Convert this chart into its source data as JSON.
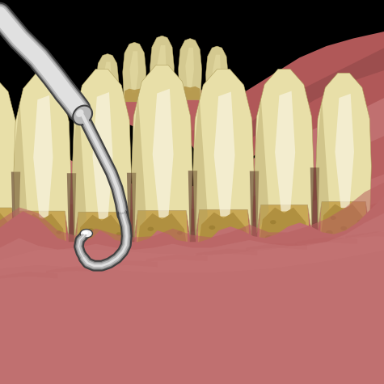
{
  "bg_color": "#000000",
  "gum_pink": "#c87878",
  "gum_mid": "#b86060",
  "gum_dark": "#8a4040",
  "gum_lower": "#c07070",
  "gum_lower2": "#b06868",
  "tooth_base": "#d4c990",
  "tooth_cream": "#e8dfa8",
  "tooth_light": "#f2edd0",
  "tooth_white": "#f8f4e0",
  "tooth_shadow": "#b0a060",
  "tooth_root": "#c8a855",
  "calculus_base": "#9a7c30",
  "calculus_mid": "#b09040",
  "calculus_light": "#c8a850",
  "tool_dark": "#404040",
  "tool_mid": "#888888",
  "tool_silver": "#b8b8b8",
  "tool_light": "#e0e0e0",
  "tool_white": "#f0f0f0",
  "handle_dark": "#303030",
  "handle_mid": "#707070",
  "handle_light": "#d0d0d0",
  "upper_gum": "#b05858",
  "upper_gum_dark": "#904848",
  "sep_dark": "#5a3a2a"
}
